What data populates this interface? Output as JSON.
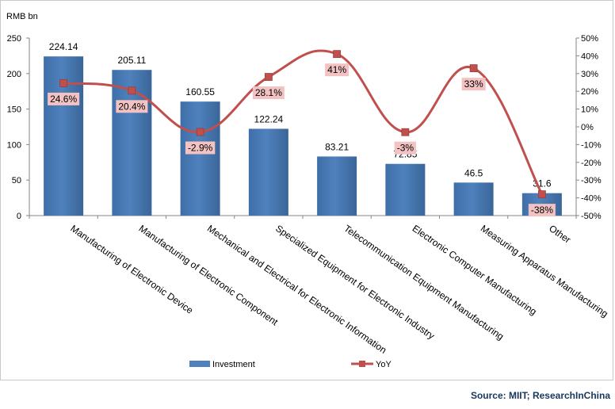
{
  "source_text": "Source: MIIT; ResearchInChina",
  "chart_data": {
    "type": "bar",
    "y_unit_label": "RMB bn",
    "categories": [
      "Manufacturing of Electronic Device",
      "Manufacturing of Electronic Component",
      "Mechanical and Electrical for Electronic Information",
      "Specialized Equipment for Electronic Industry",
      "Telecommunication Equipment Manufacturing",
      "Electronic Computer Manufacturing",
      "Measuring Apparatus Manufacturing",
      "Other"
    ],
    "series": [
      {
        "name": "Investment",
        "type": "bar",
        "axis": "left",
        "color": "#4f81bd",
        "values": [
          224.14,
          205.11,
          160.55,
          122.24,
          83.21,
          72.85,
          46.5,
          31.6
        ],
        "labels": [
          "224.14",
          "205.11",
          "160.55",
          "122.24",
          "83.21",
          "72.85",
          "46.5",
          "31.6"
        ]
      },
      {
        "name": "YoY",
        "type": "line",
        "axis": "right",
        "color": "#c0504d",
        "values": [
          24.6,
          20.4,
          -2.9,
          28.1,
          41,
          -3,
          33,
          -38
        ],
        "labels": [
          "24.6%",
          "20.4%",
          "-2.9%",
          "28.1%",
          "41%",
          "-3%",
          "33%",
          "-38%"
        ]
      }
    ],
    "y_left": {
      "min": 0,
      "max": 250,
      "ticks": [
        0,
        50,
        100,
        150,
        200,
        250
      ]
    },
    "y_right": {
      "min": -50,
      "max": 50,
      "ticks": [
        -50,
        -40,
        -30,
        -20,
        -10,
        0,
        10,
        20,
        30,
        40,
        50
      ],
      "tick_labels": [
        "-50%",
        "-40%",
        "-30%",
        "-20%",
        "-10%",
        "0%",
        "10%",
        "20%",
        "30%",
        "40%",
        "50%"
      ]
    },
    "grid": false,
    "legend_position": "bottom"
  }
}
